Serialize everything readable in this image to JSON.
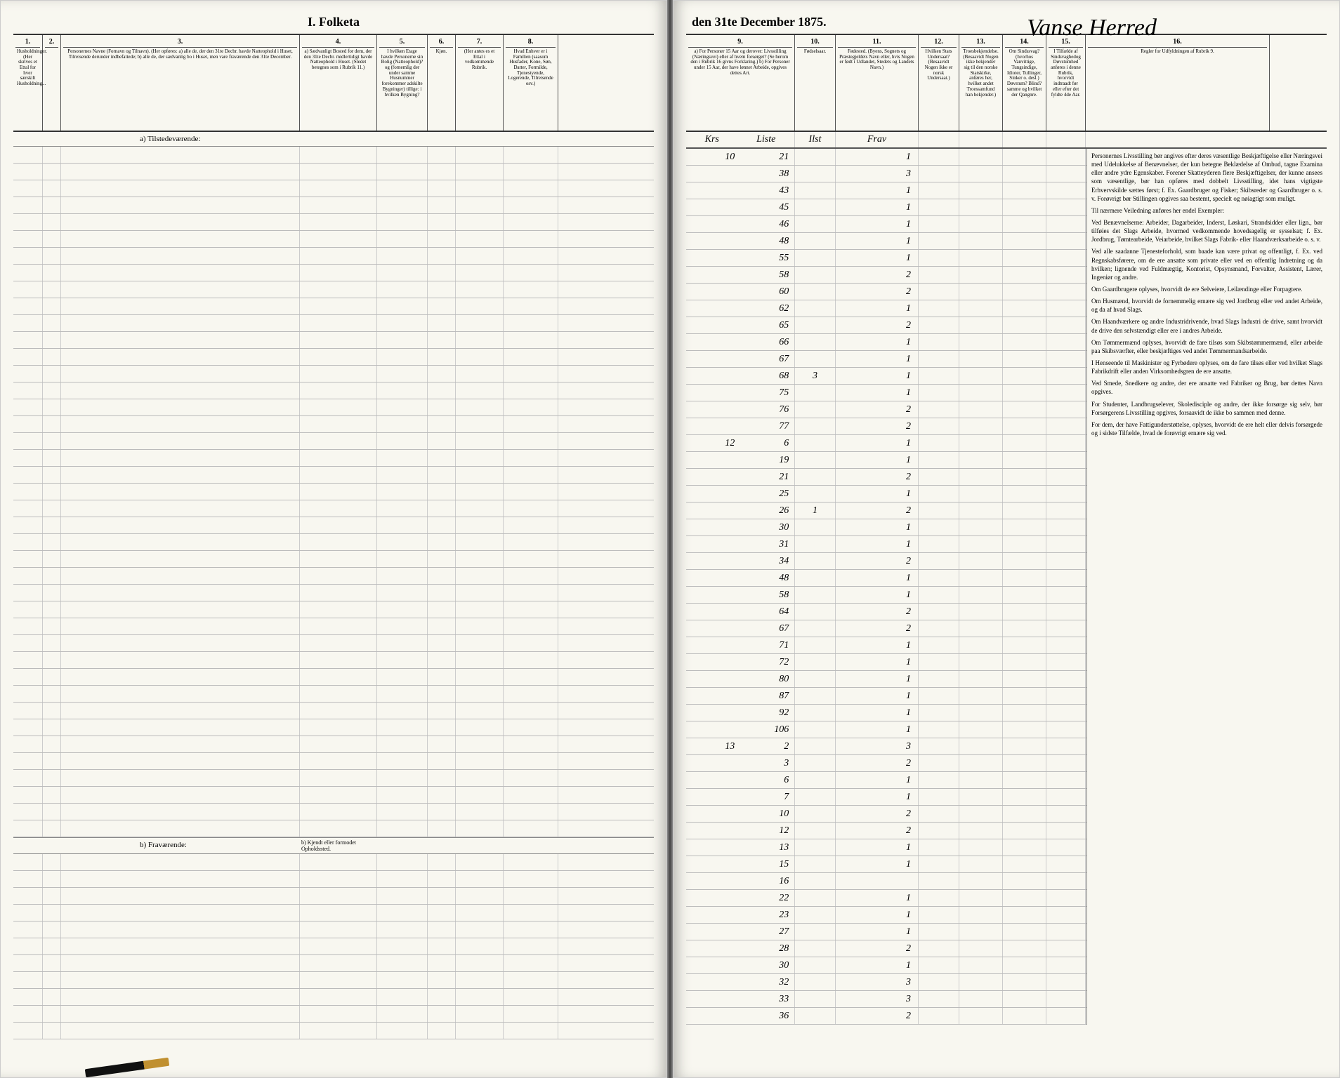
{
  "title_left": "I. Folketa",
  "title_right": "den 31te December 1875.",
  "handwritten_header": "Vanse Herred",
  "columns_left": [
    {
      "num": "1.",
      "text": "Husholdninger. (Her skrives et Ettal for hver særskilt Husholdning..."
    },
    {
      "num": "2.",
      "text": ""
    },
    {
      "num": "3.",
      "text": "Personernes Navne (Fornavn og Tilnavn). (Her opføres: a) alle de, der den 31te Decbr. havde Natteophold i Huset, Tilreisende derunder indbefattede; b) alle de, der sædvanlig bo i Huset, men vare fraværende den 31te December."
    },
    {
      "num": "4.",
      "text": "a) Sædvanligt Bosted for dem, der den 31te Decbr. midlertidigt havde Natteophold i Huset. (Stedet betegnes som i Rubrik 11.)"
    },
    {
      "num": "5.",
      "text": "I hvilken Etage havde Personerne sin Bolig (Natteophold)? og (fornemlig der under samme Husnummer forekommer adskilte Bygninger) tillige: i hvilken Bygning?"
    },
    {
      "num": "6.",
      "text": "Kjøn."
    },
    {
      "num": "7.",
      "text": "(Her antes es et Ettal i vedkommende Rubrik."
    },
    {
      "num": "8.",
      "text": "Hvad Enhver er i Familien (saasom Husfader, Kone, Søn, Datter, Formilde, Tjenestyende, Logerende, Tilreisende osv.)"
    }
  ],
  "columns_right": [
    {
      "num": "9.",
      "text": "a) For Personer 15 Aar og derover: Livsstilling (Næringsvei) eller af hvem forsørget? (Se herom den i Rubrik 16 givns Forklaring.) b) For Personer under 15 Aar, der have lønnet Arbeide, opgives dettes Art."
    },
    {
      "num": "10.",
      "text": "Fødselsaar."
    },
    {
      "num": "11.",
      "text": "Fødested. (Byens, Sognets og Præstegjeldets Navn eller, hvis Nogen er født i Udlandet, Stedets og Landets Navn.)"
    },
    {
      "num": "12.",
      "text": "Hvilken Stats Undersaat? (Besaavidt Nogen ikke er norsk Undersaat.)"
    },
    {
      "num": "13.",
      "text": "Troesbekjendelse. (Besaavidt Nogen ikke bekjender sig til den norske Statskirke, anføres her, hvilket andet Troessamfund han bekjender.)"
    },
    {
      "num": "14.",
      "text": "Om Sindssvag? (hvorhos Vanvittige, Tungsindige, Idioter, Tullinger, Sinker o. desl.) Døvstum? Blind? samme og hvilket der Qangnre."
    },
    {
      "num": "15.",
      "text": "I Tilfælde af Sindsvaghedog Døvstumhed anføres i denne Rubrik, hvorvidt indtraadt før eller efter det fyldte 4de Aar."
    },
    {
      "num": "16.",
      "text": "Regler for Udfyldningen af Rubrik 9."
    }
  ],
  "section_a": "a) Tilstedeværende:",
  "section_b": "b) Fraværende:",
  "section_b_note": "b) Kjendt eller formodet Opholdssted.",
  "handwritten_col_labels": {
    "c9a": "Krs",
    "c9b": "Liste",
    "c10": "Ilst",
    "c11": "Frav"
  },
  "rows": [
    {
      "krs": "10",
      "liste": "21",
      "ilst": "",
      "frav": "1"
    },
    {
      "krs": "",
      "liste": "38",
      "ilst": "",
      "frav": "3"
    },
    {
      "krs": "",
      "liste": "43",
      "ilst": "",
      "frav": "1"
    },
    {
      "krs": "",
      "liste": "45",
      "ilst": "",
      "frav": "1"
    },
    {
      "krs": "",
      "liste": "46",
      "ilst": "",
      "frav": "1"
    },
    {
      "krs": "",
      "liste": "48",
      "ilst": "",
      "frav": "1"
    },
    {
      "krs": "",
      "liste": "55",
      "ilst": "",
      "frav": "1"
    },
    {
      "krs": "",
      "liste": "58",
      "ilst": "",
      "frav": "2"
    },
    {
      "krs": "",
      "liste": "60",
      "ilst": "",
      "frav": "2"
    },
    {
      "krs": "",
      "liste": "62",
      "ilst": "",
      "frav": "1"
    },
    {
      "krs": "",
      "liste": "65",
      "ilst": "",
      "frav": "2"
    },
    {
      "krs": "",
      "liste": "66",
      "ilst": "",
      "frav": "1"
    },
    {
      "krs": "",
      "liste": "67",
      "ilst": "",
      "frav": "1"
    },
    {
      "krs": "",
      "liste": "68",
      "ilst": "3",
      "frav": "1"
    },
    {
      "krs": "",
      "liste": "75",
      "ilst": "",
      "frav": "1"
    },
    {
      "krs": "",
      "liste": "76",
      "ilst": "",
      "frav": "2"
    },
    {
      "krs": "",
      "liste": "77",
      "ilst": "",
      "frav": "2"
    },
    {
      "krs": "12",
      "liste": "6",
      "ilst": "",
      "frav": "1"
    },
    {
      "krs": "",
      "liste": "19",
      "ilst": "",
      "frav": "1"
    },
    {
      "krs": "",
      "liste": "21",
      "ilst": "",
      "frav": "2"
    },
    {
      "krs": "",
      "liste": "25",
      "ilst": "",
      "frav": "1"
    },
    {
      "krs": "",
      "liste": "26",
      "ilst": "1",
      "frav": "2"
    },
    {
      "krs": "",
      "liste": "30",
      "ilst": "",
      "frav": "1"
    },
    {
      "krs": "",
      "liste": "31",
      "ilst": "",
      "frav": "1"
    },
    {
      "krs": "",
      "liste": "34",
      "ilst": "",
      "frav": "2"
    },
    {
      "krs": "",
      "liste": "48",
      "ilst": "",
      "frav": "1"
    },
    {
      "krs": "",
      "liste": "58",
      "ilst": "",
      "frav": "1"
    },
    {
      "krs": "",
      "liste": "64",
      "ilst": "",
      "frav": "2"
    },
    {
      "krs": "",
      "liste": "67",
      "ilst": "",
      "frav": "2"
    },
    {
      "krs": "",
      "liste": "71",
      "ilst": "",
      "frav": "1"
    },
    {
      "krs": "",
      "liste": "72",
      "ilst": "",
      "frav": "1"
    },
    {
      "krs": "",
      "liste": "80",
      "ilst": "",
      "frav": "1"
    },
    {
      "krs": "",
      "liste": "87",
      "ilst": "",
      "frav": "1"
    },
    {
      "krs": "",
      "liste": "92",
      "ilst": "",
      "frav": "1"
    },
    {
      "krs": "",
      "liste": "106",
      "ilst": "",
      "frav": "1"
    },
    {
      "krs": "13",
      "liste": "2",
      "ilst": "",
      "frav": "3"
    },
    {
      "krs": "",
      "liste": "3",
      "ilst": "",
      "frav": "2"
    },
    {
      "krs": "",
      "liste": "6",
      "ilst": "",
      "frav": "1"
    },
    {
      "krs": "",
      "liste": "7",
      "ilst": "",
      "frav": "1"
    },
    {
      "krs": "",
      "liste": "10",
      "ilst": "",
      "frav": "2"
    },
    {
      "krs": "",
      "liste": "12",
      "ilst": "",
      "frav": "2"
    },
    {
      "krs": "",
      "liste": "13",
      "ilst": "",
      "frav": "1"
    },
    {
      "krs": "",
      "liste": "15",
      "ilst": "",
      "frav": "1"
    },
    {
      "krs": "",
      "liste": "16",
      "ilst": "",
      "frav": ""
    },
    {
      "krs": "",
      "liste": "22",
      "ilst": "",
      "frav": "1"
    },
    {
      "krs": "",
      "liste": "23",
      "ilst": "",
      "frav": "1"
    },
    {
      "krs": "",
      "liste": "27",
      "ilst": "",
      "frav": "1"
    },
    {
      "krs": "",
      "liste": "28",
      "ilst": "",
      "frav": "2"
    },
    {
      "krs": "",
      "liste": "30",
      "ilst": "",
      "frav": "1"
    },
    {
      "krs": "",
      "liste": "32",
      "ilst": "",
      "frav": "3"
    },
    {
      "krs": "",
      "liste": "33",
      "ilst": "",
      "frav": "3"
    },
    {
      "krs": "",
      "liste": "36",
      "ilst": "",
      "frav": "2"
    }
  ],
  "instructions": [
    "Personernes Livsstilling bør angives efter deres væsentlige Beskjæftigelse eller Næringsvei med Udelukkelse af Benævnelser, der kun betegne Beklædelse af Ombud, tagne Examina eller andre ydre Egenskaber. Forener Skatteyderen flere Beskjæftigelser, der kunne ansees som væsentlige, bør han opføres med dobbelt Livsstilling, idet hans vigtigste Erhvervskilde sættes først; f. Ex. Gaardbruger og Fisker; Skibsreder og Gaardbruger o. s. v. Forøvrigt bør Stillingen opgives saa bestemt, specielt og nøiagtigt som muligt.",
    "Til nærmere Veiledning anføres her endel Exempler:",
    "Ved Benævnelserne: Arbeider, Dagarbeider, Inderst, Løskari, Strandsidder eller lign., bør tilføies det Slags Arbeide, hvormed vedkommende hovedsagelig er sysselsat; f. Ex. Jordbrug, Tømtearbeide, Veiarbeide, hvilket Slags Fabrik- eller Haandværksarbeide o. s. v.",
    "Ved alle saadanne Tjenesteforhold, som baade kan være privat og offentligt, f. Ex. ved Regnskabsførere, om de ere ansatte som private eller ved en offentlig Indretning og da hvilken; lignende ved Fuldmægtig, Kontorist, Opsynsmand, Forvalter, Assistent, Lærer, Ingeniør og andre.",
    "Om Gaardbrugere oplyses, hvorvidt de ere Selveiere, Leilændinge eller Forpagtere.",
    "Om Husmænd, hvorvidt de fornemmelig ernære sig ved Jordbrug eller ved andet Arbeide, og da af hvad Slags.",
    "Om Haandværkere og andre Industridrivende, hvad Slags Industri de drive, samt hvorvidt de drive den selvstændigt eller ere i andres Arbeide.",
    "Om Tømmermænd oplyses, hvorvidt de fare tilsøs som Skibstømmermænd, eller arbeide paa Skibsværfter, eller beskjæftiges ved andet Tømmermandsarbeide.",
    "I Henseende til Maskinister og Fyrbødere oplyses, om de fare tilsøs eller ved hvilket Slags Fabrikdrift eller anden Virksomhedsgren de ere ansatte.",
    "Ved Smede, Snedkere og andre, der ere ansatte ved Fabriker og Brug, bør dettes Navn opgives.",
    "For Studenter, Landbrugselever, Skoledisciple og andre, der ikke forsørge sig selv, bør Forsørgerens Livsstilling opgives, forsaavidt de ikke bo sammen med denne.",
    "For dem, der have Fattigunderstøttelse, oplyses, hvorvidt de ere helt eller delvis forsørgede og i sidste Tilfælde, hvad de forøvrigt ernære sig ved."
  ]
}
